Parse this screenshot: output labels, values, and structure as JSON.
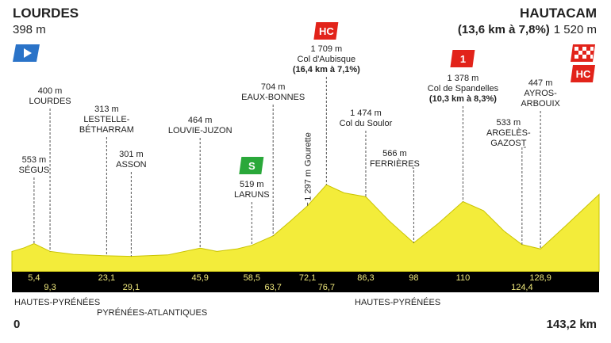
{
  "chart_data": {
    "type": "area",
    "start": {
      "name": "LOURDES",
      "altitude": "398 m"
    },
    "finish": {
      "name": "HAUTACAM",
      "climb": "(13,6 km à 7,8%)",
      "altitude": "1 520 m",
      "category": "HC"
    },
    "xlim": [
      0,
      143.2
    ],
    "ylim": [
      0,
      1900
    ],
    "xticks": [
      {
        "value": 0,
        "label": "0"
      },
      {
        "value": 143.2,
        "label": "143,2 km"
      }
    ],
    "regions": [
      "HAUTES-PYRÉNÉES",
      "PYRÉNÉES-ATLANTIQUES",
      "HAUTES-PYRÉNÉES"
    ],
    "color": "#f3ec3a",
    "profile": {
      "x": [
        0,
        3,
        5.4,
        9.3,
        15,
        23.1,
        29.1,
        38,
        45.9,
        50,
        55,
        58.5,
        63.7,
        68,
        72.1,
        76.7,
        81,
        86.3,
        92,
        98,
        104,
        110,
        115,
        120,
        124.4,
        128.9,
        135,
        143.2
      ],
      "values": [
        398,
        470,
        553,
        400,
        340,
        313,
        301,
        330,
        464,
        400,
        450,
        519,
        704,
        1000,
        1297,
        1709,
        1550,
        1474,
        1000,
        566,
        950,
        1378,
        1200,
        800,
        533,
        447,
        900,
        1520
      ]
    },
    "waypoints": [
      {
        "km": {
          "value": 5.4,
          "label": "5,4"
        },
        "altitude": {
          "value": 553,
          "label": "553 m"
        },
        "name": [
          "SÉGUS"
        ]
      },
      {
        "km": {
          "value": 9.3,
          "label": "9,3"
        },
        "altitude": {
          "value": 400,
          "label": "400 m"
        },
        "name": [
          "LOURDES"
        ]
      },
      {
        "km": {
          "value": 23.1,
          "label": "23,1"
        },
        "altitude": {
          "value": 313,
          "label": "313 m"
        },
        "name": [
          "LESTELLE-",
          "BÉTHARRAM"
        ]
      },
      {
        "km": {
          "value": 29.1,
          "label": "29,1"
        },
        "altitude": {
          "value": 301,
          "label": "301 m"
        },
        "name": [
          "ASSON"
        ]
      },
      {
        "km": {
          "value": 45.9,
          "label": "45,9"
        },
        "altitude": {
          "value": 464,
          "label": "464 m"
        },
        "name": [
          "LOUVIE-JUZON"
        ]
      },
      {
        "km": {
          "value": 58.5,
          "label": "58,5"
        },
        "altitude": {
          "value": 519,
          "label": "519 m"
        },
        "name": [
          "LARUNS"
        ],
        "sprint": "S"
      },
      {
        "km": {
          "value": 63.7,
          "label": "63,7"
        },
        "altitude": {
          "value": 704,
          "label": "704 m"
        },
        "name": [
          "EAUX-BONNES"
        ]
      },
      {
        "km": {
          "value": 72.1,
          "label": "72,1"
        },
        "altitude": {
          "value": 1297,
          "label": "1 297 m"
        },
        "name": [
          "Gourette"
        ]
      },
      {
        "km": {
          "value": 76.7,
          "label": "76,7"
        },
        "altitude": {
          "value": 1709,
          "label": "1 709 m"
        },
        "name": [
          "Col d'Aubisque"
        ],
        "detail": "(16,4 km à 7,1%)",
        "category": "HC"
      },
      {
        "km": {
          "value": 86.3,
          "label": "86,3"
        },
        "altitude": {
          "value": 1474,
          "label": "1 474 m"
        },
        "name": [
          "Col du Soulor"
        ]
      },
      {
        "km": {
          "value": 98,
          "label": "98"
        },
        "altitude": {
          "value": 566,
          "label": "566 m"
        },
        "name": [
          "FERRIÈRES"
        ]
      },
      {
        "km": {
          "value": 110,
          "label": "110"
        },
        "altitude": {
          "value": 1378,
          "label": "1 378 m"
        },
        "name": [
          "Col de Spandelles"
        ],
        "detail": "(10,3 km à 8,3%)",
        "category": "1"
      },
      {
        "km": {
          "value": 124.4,
          "label": "124,4"
        },
        "altitude": {
          "value": 533,
          "label": "533 m"
        },
        "name": [
          "ARGELÈS-",
          "GAZOST"
        ]
      },
      {
        "km": {
          "value": 128.9,
          "label": "128,9"
        },
        "altitude": {
          "value": 447,
          "label": "447 m"
        },
        "name": [
          "AYROS-",
          "ARBOUIX"
        ]
      }
    ]
  }
}
